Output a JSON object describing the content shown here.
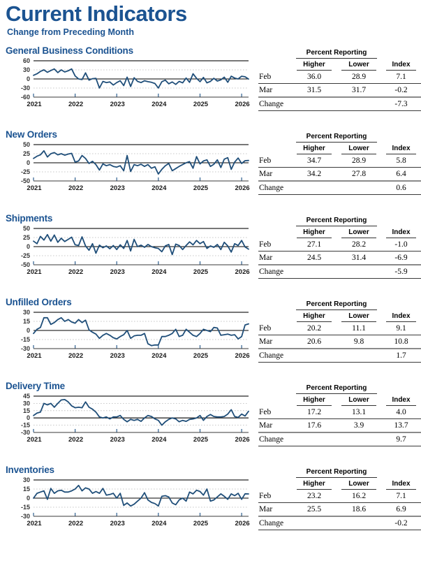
{
  "page": {
    "title": "Current Indicators",
    "subtitle": "Change from Preceding Month"
  },
  "colors": {
    "heading_blue": "#1b5391",
    "line_blue": "#1f4e79",
    "zero_axis": "#000000",
    "gridline_gray": "#b9b9b9"
  },
  "sections": [
    {
      "title": "General Business Conditions",
      "table": {
        "group_header": "Percent Reporting",
        "columns": [
          "Higher",
          "Lower",
          "Index"
        ],
        "rows": [
          {
            "label": "Feb",
            "higher": "36.0",
            "lower": "28.9",
            "index": "7.1"
          },
          {
            "label": "Mar",
            "higher": "31.5",
            "lower": "31.7",
            "index": "-0.2"
          },
          {
            "label": "Change",
            "higher": "",
            "lower": "",
            "index": "-7.3"
          }
        ]
      }
    },
    {
      "title": "New Orders",
      "table": {
        "group_header": "Percent Reporting",
        "columns": [
          "Higher",
          "Lower",
          "Index"
        ],
        "rows": [
          {
            "label": "Feb",
            "higher": "34.7",
            "lower": "28.9",
            "index": "5.8"
          },
          {
            "label": "Mar",
            "higher": "34.2",
            "lower": "27.8",
            "index": "6.4"
          },
          {
            "label": "Change",
            "higher": "",
            "lower": "",
            "index": "0.6"
          }
        ]
      }
    },
    {
      "title": "Shipments",
      "table": {
        "group_header": "Percent Reporting",
        "columns": [
          "Higher",
          "Lower",
          "Index"
        ],
        "rows": [
          {
            "label": "Feb",
            "higher": "27.1",
            "lower": "28.2",
            "index": "-1.0"
          },
          {
            "label": "Mar",
            "higher": "24.5",
            "lower": "31.4",
            "index": "-6.9"
          },
          {
            "label": "Change",
            "higher": "",
            "lower": "",
            "index": "-5.9"
          }
        ]
      }
    },
    {
      "title": "Unfilled Orders",
      "table": {
        "group_header": "Percent Reporting",
        "columns": [
          "Higher",
          "Lower",
          "Index"
        ],
        "rows": [
          {
            "label": "Feb",
            "higher": "20.2",
            "lower": "11.1",
            "index": "9.1"
          },
          {
            "label": "Mar",
            "higher": "20.6",
            "lower": "9.8",
            "index": "10.8"
          },
          {
            "label": "Change",
            "higher": "",
            "lower": "",
            "index": "1.7"
          }
        ]
      }
    },
    {
      "title": "Delivery Time",
      "table": {
        "group_header": "Percent Reporting",
        "columns": [
          "Higher",
          "Lower",
          "Index"
        ],
        "rows": [
          {
            "label": "Feb",
            "higher": "17.2",
            "lower": "13.1",
            "index": "4.0"
          },
          {
            "label": "Mar",
            "higher": "17.6",
            "lower": "3.9",
            "index": "13.7"
          },
          {
            "label": "Change",
            "higher": "",
            "lower": "",
            "index": "9.7"
          }
        ]
      }
    },
    {
      "title": "Inventories",
      "table": {
        "group_header": "Percent Reporting",
        "columns": [
          "Higher",
          "Lower",
          "Index"
        ],
        "rows": [
          {
            "label": "Feb",
            "higher": "23.2",
            "lower": "16.2",
            "index": "7.1"
          },
          {
            "label": "Mar",
            "higher": "25.5",
            "lower": "18.6",
            "index": "6.9"
          },
          {
            "label": "Change",
            "higher": "",
            "lower": "",
            "index": "-0.2"
          }
        ]
      }
    }
  ],
  "chart_data": [
    {
      "type": "line",
      "title": "General Business Conditions",
      "x_start": "2021-01",
      "frequency": "monthly",
      "xticks": [
        "2021",
        "2022",
        "2023",
        "2024",
        "2025",
        "2026"
      ],
      "xtick_month_index": [
        0,
        12,
        24,
        36,
        48,
        60
      ],
      "ylim": [
        -60,
        60
      ],
      "yticks": [
        60,
        30,
        0,
        -30,
        -60
      ],
      "grid": "dotted-interior",
      "legend": "none",
      "values": [
        12,
        17,
        25,
        30,
        22,
        28,
        33,
        21,
        30,
        23,
        27,
        33,
        10,
        0,
        -2,
        20,
        -4,
        1,
        2,
        -30,
        -8,
        -12,
        -10,
        -20,
        -12,
        -6,
        -22,
        6,
        -25,
        4,
        -8,
        -12,
        -6,
        -9,
        -11,
        -15,
        -30,
        -9,
        -4,
        -16,
        -10,
        -18,
        -8,
        -13,
        3,
        -11,
        17,
        2,
        -9,
        5,
        -13,
        -8,
        2,
        -7,
        -3,
        6,
        -11,
        9,
        3,
        0,
        9,
        7.1,
        -0.2
      ]
    },
    {
      "type": "line",
      "title": "New Orders",
      "x_start": "2021-01",
      "frequency": "monthly",
      "xticks": [
        "2021",
        "2022",
        "2023",
        "2024",
        "2025",
        "2026"
      ],
      "xtick_month_index": [
        0,
        12,
        24,
        36,
        48,
        60
      ],
      "ylim": [
        -50,
        50
      ],
      "yticks": [
        50,
        25,
        0,
        -25,
        -50
      ],
      "grid": "dotted-interior",
      "legend": "none",
      "values": [
        12,
        18,
        22,
        33,
        16,
        25,
        28,
        22,
        25,
        21,
        24,
        26,
        2,
        5,
        20,
        12,
        -2,
        4,
        -5,
        -20,
        -3,
        -8,
        -5,
        -10,
        -12,
        -8,
        -22,
        20,
        -24,
        -5,
        -8,
        -4,
        -10,
        -5,
        -15,
        -11,
        -31,
        -18,
        -8,
        -2,
        -22,
        -16,
        -10,
        -5,
        0,
        3,
        -15,
        17,
        -3,
        5,
        8,
        -10,
        -4,
        8,
        -13,
        10,
        14,
        -18,
        2,
        13,
        -2,
        5.8,
        6.4
      ]
    },
    {
      "type": "line",
      "title": "Shipments",
      "x_start": "2021-01",
      "frequency": "monthly",
      "xticks": [
        "2021",
        "2022",
        "2023",
        "2024",
        "2025",
        "2026"
      ],
      "xtick_month_index": [
        0,
        12,
        24,
        36,
        48,
        60
      ],
      "ylim": [
        -50,
        50
      ],
      "yticks": [
        50,
        25,
        0,
        -25,
        -50
      ],
      "grid": "dotted-interior",
      "legend": "none",
      "values": [
        15,
        8,
        28,
        18,
        33,
        15,
        32,
        12,
        23,
        14,
        20,
        26,
        5,
        3,
        27,
        2,
        -10,
        8,
        -18,
        4,
        -3,
        2,
        -6,
        3,
        -8,
        5,
        -5,
        17,
        -12,
        20,
        0,
        4,
        -2,
        6,
        0,
        -3,
        -5,
        -14,
        2,
        6,
        -22,
        7,
        3,
        -8,
        3,
        13,
        5,
        17,
        8,
        14,
        -5,
        2,
        -2,
        6,
        -8,
        12,
        2,
        -15,
        8,
        3,
        17,
        -1.0,
        -6.9
      ]
    },
    {
      "type": "line",
      "title": "Unfilled Orders",
      "x_start": "2021-01",
      "frequency": "monthly",
      "xticks": [
        "2021",
        "2022",
        "2023",
        "2024",
        "2025",
        "2026"
      ],
      "xtick_month_index": [
        0,
        12,
        24,
        36,
        48,
        60
      ],
      "ylim": [
        -30,
        30
      ],
      "yticks": [
        30,
        15,
        0,
        -15,
        -30
      ],
      "grid": "dotted-interior",
      "legend": "none",
      "values": [
        -5,
        2,
        5,
        21,
        21,
        10,
        13,
        18,
        21,
        15,
        18,
        14,
        12,
        18,
        13,
        17,
        1,
        -3,
        -6,
        -13,
        -8,
        -5,
        -8,
        -12,
        -14,
        -10,
        -7,
        0,
        -13,
        -9,
        -8,
        -8,
        -5,
        -22,
        -25,
        -24,
        -24,
        -10,
        -10,
        -8,
        -5,
        2,
        -10,
        -8,
        2,
        -3,
        -8,
        -10,
        -5,
        2,
        0,
        -2,
        5,
        4,
        -8,
        -7,
        -6,
        -8,
        -7,
        -14,
        -10,
        9.1,
        10.8
      ]
    },
    {
      "type": "line",
      "title": "Delivery Time",
      "x_start": "2021-01",
      "frequency": "monthly",
      "xticks": [
        "2021",
        "2022",
        "2023",
        "2024",
        "2025",
        "2026"
      ],
      "xtick_month_index": [
        0,
        12,
        24,
        36,
        48,
        60
      ],
      "ylim": [
        -30,
        45
      ],
      "yticks": [
        45,
        30,
        15,
        0,
        -15,
        -30
      ],
      "grid": "dotted-interior",
      "legend": "none",
      "values": [
        5,
        10,
        12,
        30,
        27,
        30,
        22,
        30,
        37,
        38,
        33,
        25,
        21,
        22,
        21,
        33,
        22,
        18,
        12,
        2,
        0,
        2,
        -2,
        2,
        2,
        5,
        -3,
        -8,
        -3,
        -5,
        -3,
        -7,
        0,
        5,
        3,
        -2,
        -5,
        -15,
        -8,
        -3,
        0,
        -2,
        -8,
        -5,
        -7,
        -3,
        -2,
        0,
        5,
        -5,
        3,
        7,
        3,
        2,
        2,
        3,
        8,
        17,
        3,
        1,
        8,
        4.0,
        13.7
      ]
    },
    {
      "type": "line",
      "title": "Inventories",
      "x_start": "2021-01",
      "frequency": "monthly",
      "xticks": [
        "2021",
        "2022",
        "2023",
        "2024",
        "2025",
        "2026"
      ],
      "xtick_month_index": [
        0,
        12,
        24,
        36,
        48,
        60
      ],
      "ylim": [
        -30,
        30
      ],
      "yticks": [
        30,
        15,
        0,
        -15,
        -30
      ],
      "grid": "dotted-interior",
      "legend": "none",
      "values": [
        0,
        8,
        10,
        12,
        -2,
        16,
        8,
        12,
        13,
        10,
        10,
        12,
        15,
        21,
        12,
        17,
        15,
        8,
        11,
        8,
        16,
        5,
        6,
        8,
        0,
        8,
        -12,
        -8,
        -13,
        -10,
        -5,
        0,
        9,
        -3,
        -7,
        -9,
        -13,
        3,
        4,
        2,
        -8,
        -11,
        -3,
        0,
        -5,
        10,
        7,
        13,
        11,
        5,
        15,
        -5,
        -3,
        2,
        7,
        3,
        -2,
        7,
        4,
        8,
        -2,
        7.1,
        6.9
      ]
    }
  ]
}
